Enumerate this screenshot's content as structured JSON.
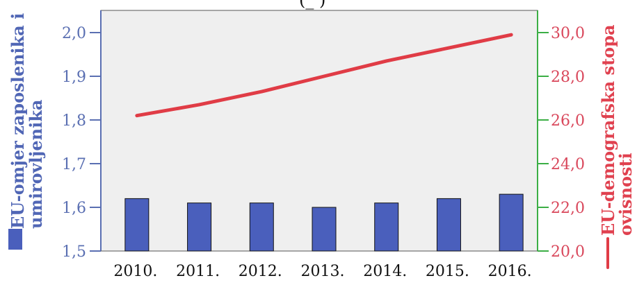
{
  "chart_data": {
    "type": "bar",
    "top_caption": "(_            )",
    "categories": [
      "2010.",
      "2011.",
      "2012.",
      "2013.",
      "2014.",
      "2015.",
      "2016."
    ],
    "series": [
      {
        "name": "EU-omjer zaposlenika i umirovljenika",
        "type": "bar",
        "axis": "left",
        "color": "#4a5fbc",
        "values": [
          1.62,
          1.61,
          1.61,
          1.6,
          1.61,
          1.62,
          1.63
        ]
      },
      {
        "name": "EU-demografska stopa ovisnosti",
        "type": "line",
        "axis": "right",
        "color": "#e03c46",
        "values": [
          26.2,
          26.7,
          27.3,
          28.0,
          28.7,
          29.3,
          29.9
        ]
      }
    ],
    "y_left": {
      "label": "EU-omjer zaposlenika i umirovljenika",
      "ticks": [
        "1,5",
        "1,6",
        "1,7",
        "1,8",
        "1,9",
        "2,0"
      ],
      "range": [
        1.5,
        2.0
      ]
    },
    "y_right": {
      "label": "EU-demografska stopa ovisnosti",
      "ticks": [
        "20,0",
        "22,0",
        "24,0",
        "26,0",
        "28,0",
        "30,0"
      ],
      "range": [
        20.0,
        30.0
      ]
    },
    "grid": false,
    "legend": "inline-axis-markers"
  },
  "colors": {
    "plot_background": "#efefef",
    "axis_left": "#5a6fb2",
    "axis_right": "#3bae45",
    "right_tick_text": "#d9475b"
  }
}
